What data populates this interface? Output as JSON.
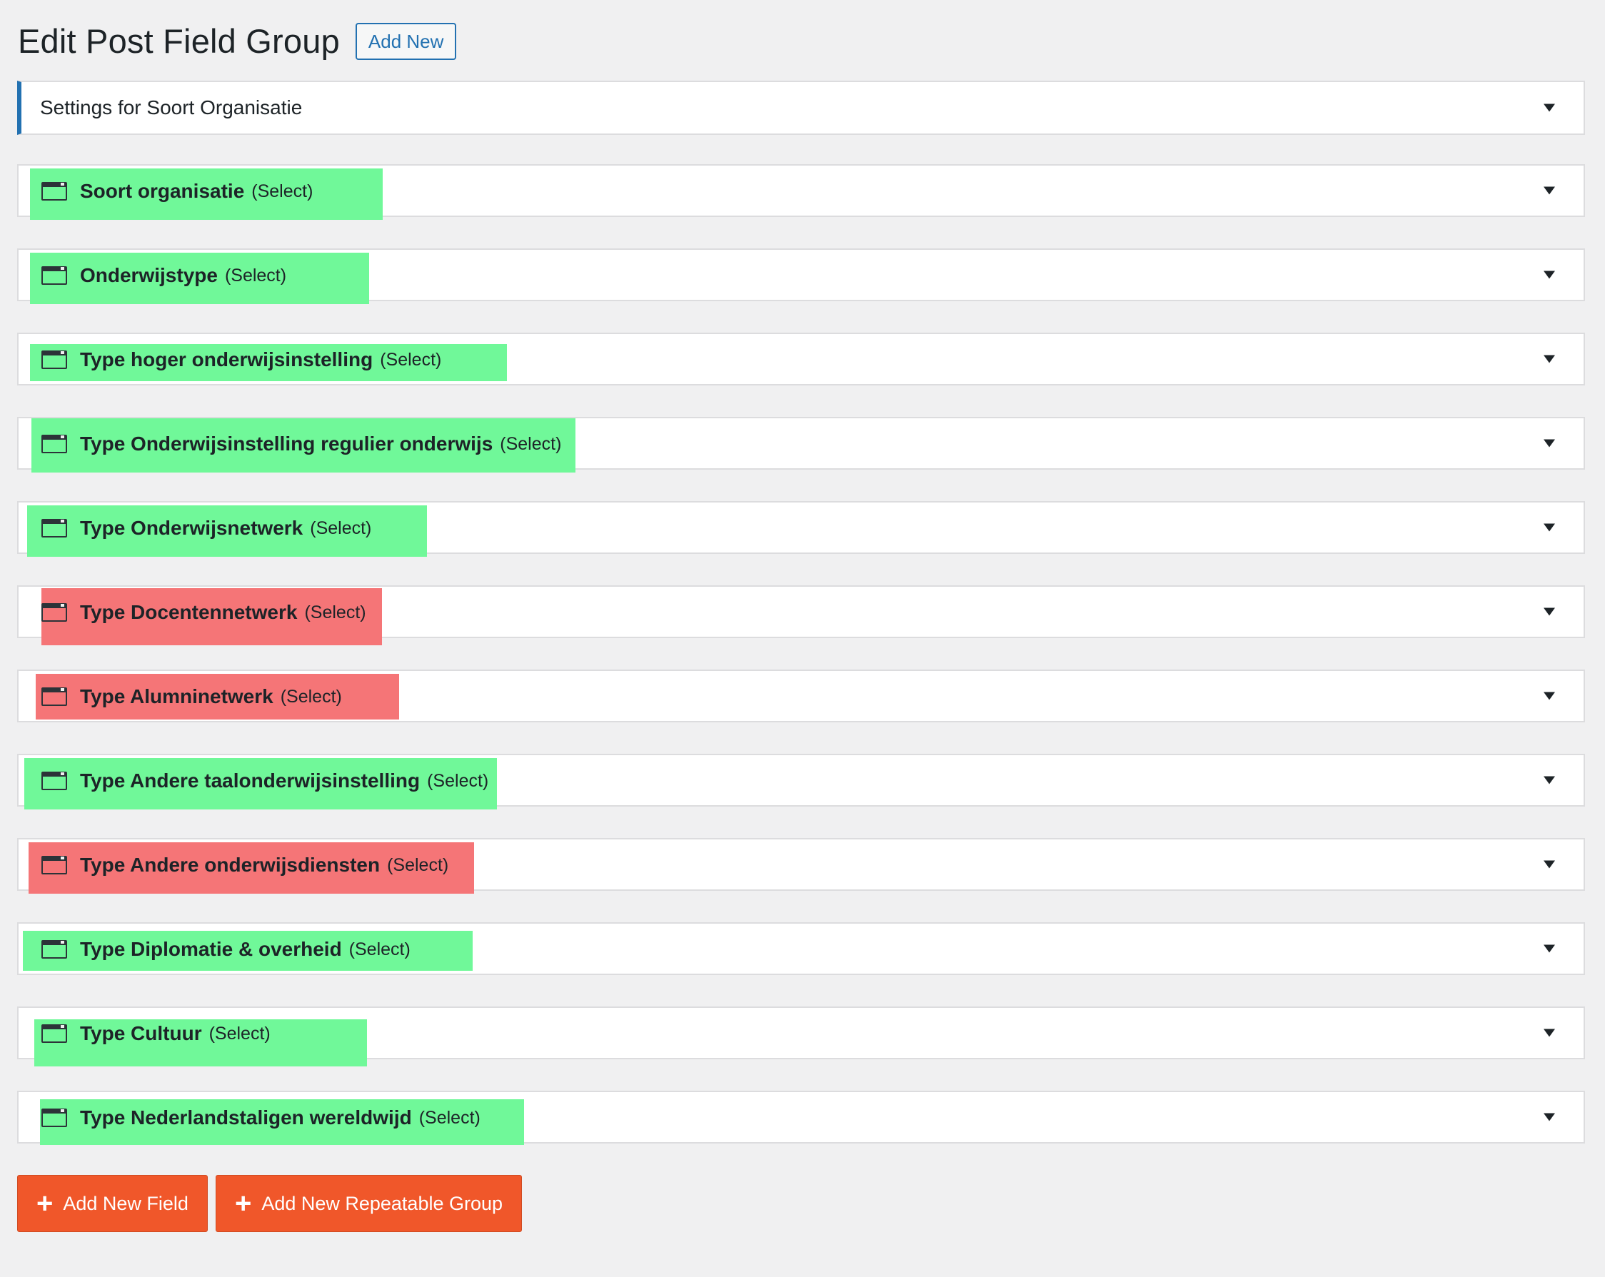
{
  "header": {
    "title": "Edit Post Field Group",
    "add_new_label": "Add New"
  },
  "settings_box": {
    "label": "Settings for Soort Organisatie"
  },
  "fields": [
    {
      "name": "Soort organisatie",
      "type": "(Select)",
      "highlight": "green"
    },
    {
      "name": "Onderwijstype",
      "type": "(Select)",
      "highlight": "green"
    },
    {
      "name": "Type hoger onderwijsinstelling",
      "type": "(Select)",
      "highlight": "green"
    },
    {
      "name": "Type Onderwijsinstelling regulier onderwijs",
      "type": "(Select)",
      "highlight": "green"
    },
    {
      "name": "Type Onderwijsnetwerk",
      "type": "(Select)",
      "highlight": "green"
    },
    {
      "name": "Type Docentennetwerk",
      "type": "(Select)",
      "highlight": "red"
    },
    {
      "name": "Type Alumninetwerk",
      "type": "(Select)",
      "highlight": "red"
    },
    {
      "name": "Type Andere taalonderwijsinstelling",
      "type": "(Select)",
      "highlight": "green"
    },
    {
      "name": "Type Andere onderwijsdiensten",
      "type": "(Select)",
      "highlight": "red"
    },
    {
      "name": "Type Diplomatie & overheid",
      "type": "(Select)",
      "highlight": "green"
    },
    {
      "name": "Type Cultuur",
      "type": "(Select)",
      "highlight": "green"
    },
    {
      "name": "Type Nederlandstaligen wereldwijd",
      "type": "(Select)",
      "highlight": "green"
    }
  ],
  "actions": {
    "add_field_label": "Add New Field",
    "add_group_label": "Add New Repeatable Group"
  },
  "colors": {
    "accent": "#2271b1",
    "button": "#f0572a",
    "highlight_green": "#70f899",
    "highlight_red": "#f57577"
  }
}
